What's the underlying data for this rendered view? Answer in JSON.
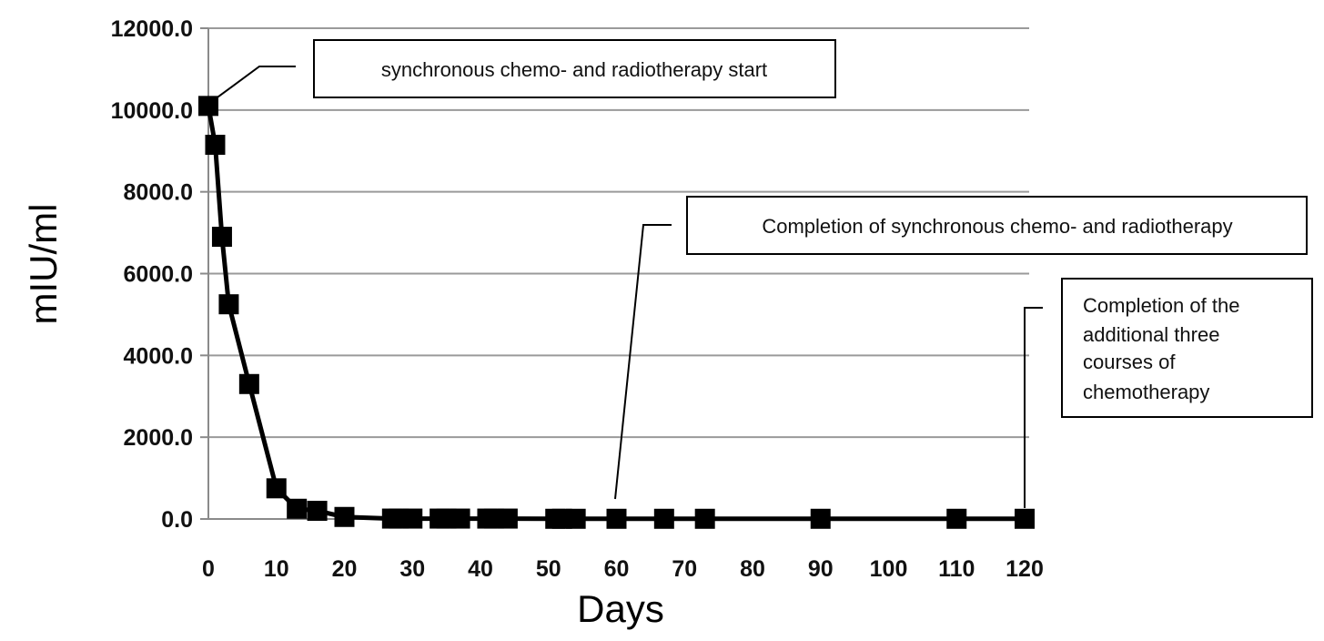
{
  "chart_data": {
    "type": "line",
    "title": "",
    "xlabel": "Days",
    "ylabel": "mIU/ml",
    "xlim": [
      0,
      120
    ],
    "ylim": [
      0,
      12000
    ],
    "x_ticks": [
      "0",
      "10",
      "20",
      "30",
      "40",
      "50",
      "60",
      "70",
      "80",
      "90",
      "100",
      "110",
      "120"
    ],
    "y_ticks": [
      "0.0",
      "2000.0",
      "4000.0",
      "6000.0",
      "8000.0",
      "10000.0",
      "12000.0"
    ],
    "grid": "horizontal",
    "legend": "none",
    "line_color": "#000000",
    "marker": "square",
    "series": [
      {
        "x": [
          0,
          1,
          2,
          3,
          6,
          10,
          13,
          16,
          20,
          27,
          28,
          30,
          34,
          35,
          37,
          41,
          42,
          44,
          51,
          52,
          54,
          60,
          67,
          73,
          90,
          110,
          120
        ],
        "y": [
          10100,
          9150,
          6900,
          5250,
          3300,
          750,
          250,
          200,
          50,
          10,
          10,
          10,
          10,
          10,
          10,
          10,
          10,
          10,
          5,
          5,
          5,
          5,
          5,
          5,
          5,
          5,
          5
        ]
      }
    ],
    "annotations": [
      {
        "lines": [
          "synchronous chemo- and radiotherapy start"
        ],
        "x": 0,
        "y": 10100
      },
      {
        "lines": [
          "Completion of synchronous chemo- and radiotherapy"
        ],
        "x": 60,
        "y": 0
      },
      {
        "lines": [
          "Completion of the",
          "additional three",
          "courses of",
          "chemotherapy"
        ],
        "x": 120,
        "y": 0
      }
    ]
  }
}
